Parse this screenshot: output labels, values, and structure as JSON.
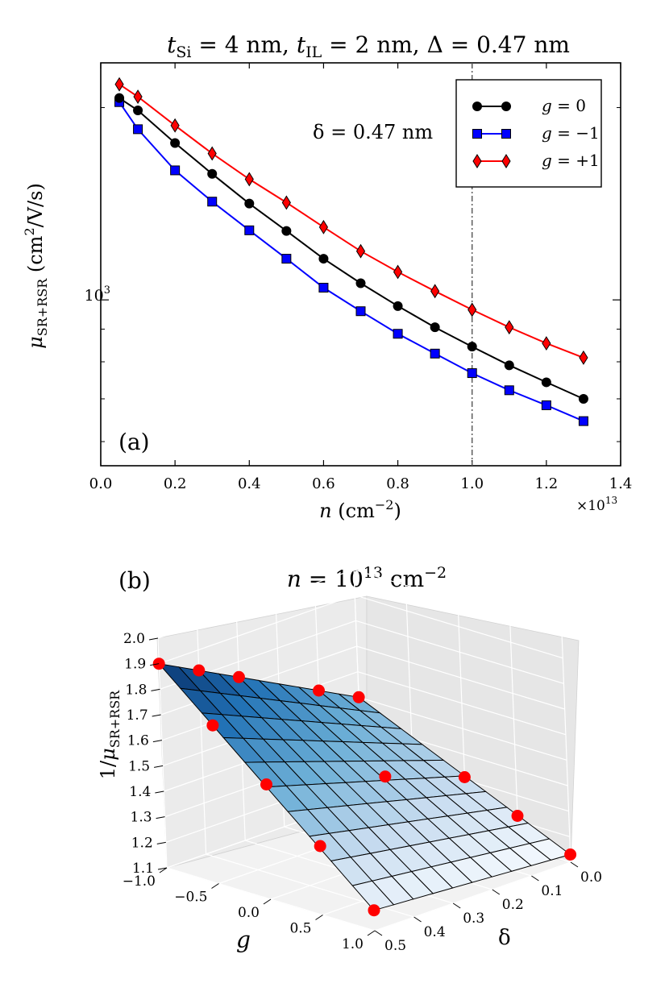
{
  "chart_data": [
    {
      "panel": "(a)",
      "type": "line",
      "title": {
        "t_si": "t",
        "t_si_sub": "Si",
        "t_si_value": " = 4 nm, ",
        "t_il": "t",
        "t_il_sub": "IL",
        "t_il_value": " = 2 nm, ",
        "delta": "Δ = 0.47 nm"
      },
      "xlabel": {
        "var": "n",
        "units": " (cm",
        "exp": "−2",
        "close": ")"
      },
      "ylabel": {
        "var": "μ",
        "sub": "SR+RSR",
        "units": " (cm",
        "exp": "2",
        "rest": "/V/s)"
      },
      "x_offset_label": {
        "base": "×10",
        "exp": "13"
      },
      "y_tick_label": {
        "base": "10",
        "exp": "3"
      },
      "xlim": [
        0.0,
        1.4
      ],
      "ylim": [
        550,
        2350
      ],
      "yscale": "log",
      "x_ticks": [
        0.0,
        0.2,
        0.4,
        0.6,
        0.8,
        1.0,
        1.2,
        1.4
      ],
      "x_tick_labels": [
        "0.0",
        "0.2",
        "0.4",
        "0.6",
        "0.8",
        "1.0",
        "1.2",
        "1.4"
      ],
      "y_major_ticks": [
        1000
      ],
      "y_minor_ticks": [
        600,
        700,
        800,
        900,
        2000
      ],
      "annotation": "δ = 0.47 nm",
      "vline": 1.0,
      "legend_position": "upper right",
      "x": [
        0.05,
        0.1,
        0.2,
        0.3,
        0.4,
        0.5,
        0.6,
        0.7,
        0.8,
        0.9,
        1.0,
        1.1,
        1.2,
        1.3
      ],
      "series": [
        {
          "name": "g = 0",
          "var": "g",
          "eq": " = 0",
          "color": "#000000",
          "marker": "circle",
          "values": [
            2070,
            1980,
            1760,
            1575,
            1415,
            1282,
            1160,
            1062,
            978,
            906,
            845,
            790,
            743,
            700
          ]
        },
        {
          "name": "g = −1",
          "var": "g",
          "eq": " = −1",
          "color": "#0000ff",
          "marker": "square",
          "values": [
            2040,
            1850,
            1595,
            1425,
            1285,
            1160,
            1045,
            960,
            885,
            824,
            768,
            722,
            684,
            646
          ]
        },
        {
          "name": "g = +1",
          "var": "g",
          "eq": " = +1",
          "color": "#ff0000",
          "marker": "diamond",
          "values": [
            2175,
            2080,
            1875,
            1695,
            1545,
            1420,
            1300,
            1192,
            1106,
            1032,
            965,
            906,
            855,
            812
          ]
        }
      ]
    },
    {
      "panel": "(b)",
      "type": "surface3d",
      "title": {
        "var": "n",
        "eq": " = 10",
        "exp": "13",
        "units": " cm",
        "units_exp": "−2"
      },
      "zlabel": {
        "prefix": "1/",
        "var": "μ",
        "sub": "SR+RSR"
      },
      "xlabel": "g",
      "ylabel": "δ",
      "g_ticks": [
        "−1.0",
        "−0.5",
        "0.0",
        "0.5",
        "1.0"
      ],
      "delta_ticks": [
        "0.0",
        "0.1",
        "0.2",
        "0.3",
        "0.4",
        "0.5"
      ],
      "z_ticks": [
        "1.1",
        "1.2",
        "1.3",
        "1.4",
        "1.5",
        "1.6",
        "1.7",
        "1.8",
        "1.9",
        "2.0"
      ],
      "g_range": [
        -1.0,
        1.0
      ],
      "delta_range": [
        0.0,
        0.5
      ],
      "zlim": [
        1.1,
        2.0
      ],
      "grid_divisions": 10,
      "surface_colormap": "Blues",
      "surface_corners": {
        "g_m1_d0": 1.5,
        "g_m1_d05": 1.9,
        "g_p1_d0": 1.13,
        "g_p1_d05": 1.18
      },
      "red_points": [
        {
          "g": -1.0,
          "delta": 0.0,
          "z": 1.5
        },
        {
          "g": -1.0,
          "delta": 0.1,
          "z": 1.58
        },
        {
          "g": -1.0,
          "delta": 0.3,
          "z": 1.74
        },
        {
          "g": -1.0,
          "delta": 0.4,
          "z": 1.82
        },
        {
          "g": -1.0,
          "delta": 0.5,
          "z": 1.9
        },
        {
          "g": -0.5,
          "delta": 0.5,
          "z": 1.72
        },
        {
          "g": 0.0,
          "delta": 0.0,
          "z": 1.31
        },
        {
          "g": 0.0,
          "delta": 0.2,
          "z": 1.42
        },
        {
          "g": 0.0,
          "delta": 0.5,
          "z": 1.55
        },
        {
          "g": 0.5,
          "delta": 0.5,
          "z": 1.37
        },
        {
          "g": 0.5,
          "delta": 0.0,
          "z": 1.22
        },
        {
          "g": 1.0,
          "delta": 0.0,
          "z": 1.13
        },
        {
          "g": 1.0,
          "delta": 0.5,
          "z": 1.18
        }
      ]
    }
  ]
}
